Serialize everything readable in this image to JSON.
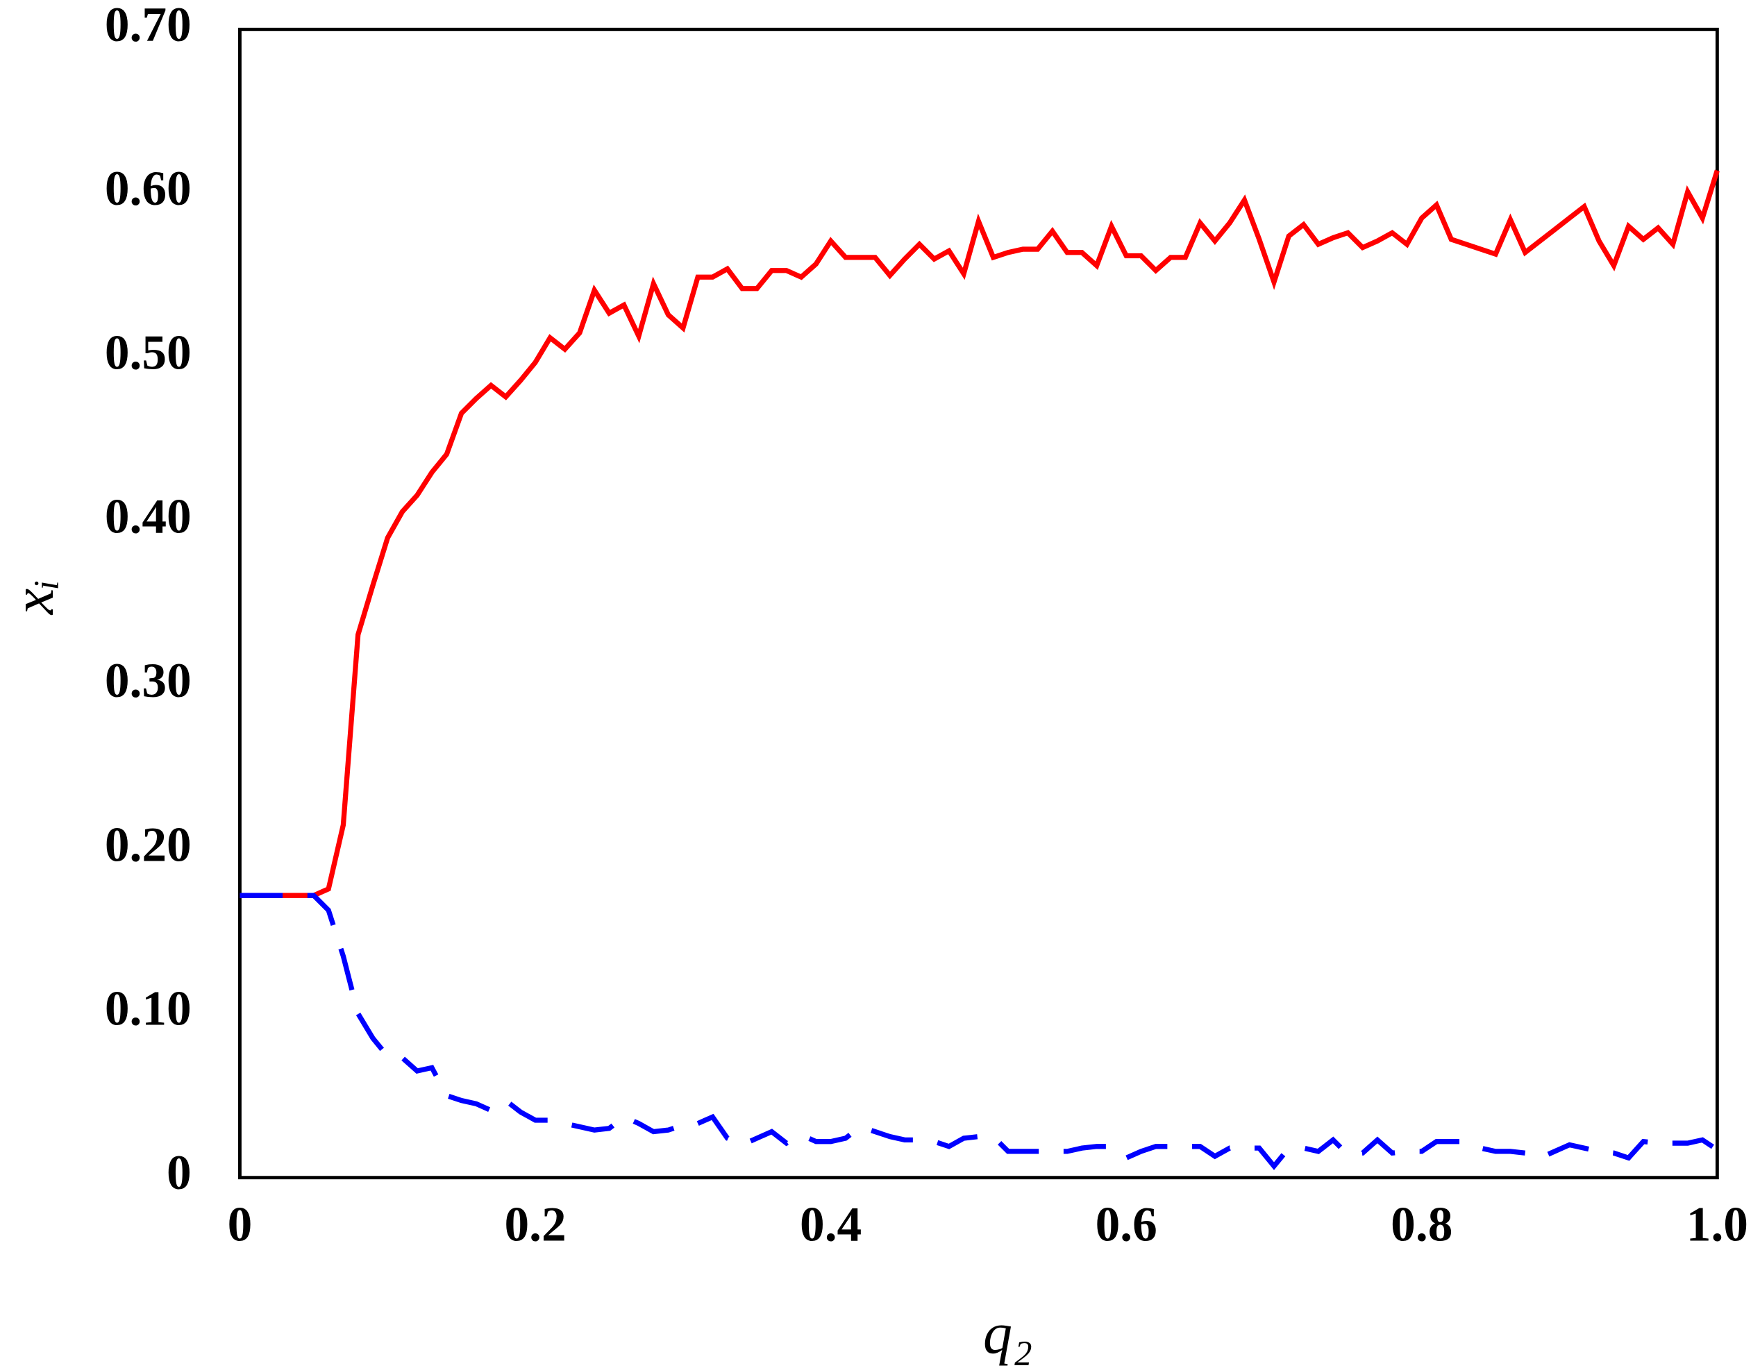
{
  "chart_data": {
    "type": "line",
    "xlabel": "q₂",
    "ylabel": "xᵢ",
    "x": [
      0,
      0.01,
      0.02,
      0.03,
      0.04,
      0.05,
      0.06,
      0.07,
      0.08,
      0.09,
      0.1,
      0.11,
      0.12,
      0.13,
      0.14,
      0.15,
      0.16,
      0.17,
      0.18,
      0.19,
      0.2,
      0.21,
      0.22,
      0.23,
      0.24,
      0.25,
      0.26,
      0.27,
      0.28,
      0.29,
      0.3,
      0.31,
      0.32,
      0.33,
      0.34,
      0.35,
      0.36,
      0.37,
      0.38,
      0.39,
      0.4,
      0.41,
      0.42,
      0.43,
      0.44,
      0.45,
      0.46,
      0.47,
      0.48,
      0.49,
      0.5,
      0.51,
      0.52,
      0.53,
      0.54,
      0.55,
      0.56,
      0.57,
      0.58,
      0.59,
      0.6,
      0.61,
      0.62,
      0.63,
      0.64,
      0.65,
      0.66,
      0.67,
      0.68,
      0.69,
      0.7,
      0.71,
      0.72,
      0.73,
      0.74,
      0.75,
      0.76,
      0.77,
      0.78,
      0.79,
      0.8,
      0.81,
      0.82,
      0.83,
      0.84,
      0.85,
      0.86,
      0.87,
      0.88,
      0.89,
      0.9,
      0.91,
      0.92,
      0.93,
      0.94,
      0.95,
      0.96,
      0.97,
      0.98,
      0.99,
      1
    ],
    "series": [
      {
        "color": "#ff0000",
        "line_style": "solid",
        "values": [
          0.172,
          0.172,
          0.172,
          0.172,
          0.172,
          0.172,
          0.176,
          0.215,
          0.331,
          0.361,
          0.39,
          0.406,
          0.416,
          0.43,
          0.441,
          0.466,
          0.475,
          0.483,
          0.476,
          0.486,
          0.497,
          0.512,
          0.505,
          0.515,
          0.541,
          0.527,
          0.532,
          0.513,
          0.545,
          0.526,
          0.518,
          0.549,
          0.549,
          0.554,
          0.542,
          0.542,
          0.553,
          0.553,
          0.549,
          0.557,
          0.571,
          0.561,
          0.561,
          0.561,
          0.55,
          0.56,
          0.569,
          0.56,
          0.565,
          0.551,
          0.583,
          0.561,
          0.564,
          0.566,
          0.566,
          0.577,
          0.564,
          0.564,
          0.556,
          0.58,
          0.562,
          0.562,
          0.553,
          0.561,
          0.561,
          0.582,
          0.571,
          0.582,
          0.596,
          0.572,
          0.546,
          0.574,
          0.581,
          0.569,
          0.573,
          0.576,
          0.567,
          0.571,
          0.576,
          0.569,
          0.585,
          0.593,
          0.572,
          0.569,
          0.566,
          0.563,
          0.584,
          0.564,
          0.571,
          0.578,
          0.585,
          0.592,
          0.571,
          0.556,
          0.58,
          0.572,
          0.579,
          0.569,
          0.601,
          0.585,
          0.614
        ]
      },
      {
        "color": "#0000ff",
        "line_style": "dashed",
        "values": [
          0.172,
          0.172,
          0.172,
          0.172,
          0.172,
          0.172,
          0.163,
          0.135,
          0.1,
          0.085,
          0.074,
          0.073,
          0.065,
          0.067,
          0.05,
          0.047,
          0.045,
          0.041,
          0.047,
          0.04,
          0.035,
          0.035,
          0.033,
          0.031,
          0.029,
          0.03,
          0.037,
          0.033,
          0.028,
          0.029,
          0.032,
          0.033,
          0.037,
          0.024,
          0.02,
          0.024,
          0.028,
          0.021,
          0.026,
          0.022,
          0.022,
          0.024,
          0.031,
          0.028,
          0.025,
          0.023,
          0.023,
          0.022,
          0.019,
          0.024,
          0.025,
          0.025,
          0.016,
          0.016,
          0.016,
          0.016,
          0.016,
          0.018,
          0.019,
          0.019,
          0.012,
          0.016,
          0.019,
          0.019,
          0.019,
          0.019,
          0.013,
          0.018,
          0.018,
          0.018,
          0.007,
          0.018,
          0.018,
          0.016,
          0.023,
          0.014,
          0.015,
          0.023,
          0.015,
          0.016,
          0.016,
          0.022,
          0.022,
          0.022,
          0.018,
          0.016,
          0.016,
          0.015,
          0.012,
          0.016,
          0.02,
          0.018,
          0.016,
          0.015,
          0.012,
          0.022,
          0.021,
          0.021,
          0.021,
          0.023,
          0.017
        ]
      }
    ],
    "xlim": [
      0,
      1
    ],
    "xticks": [
      0,
      0.2,
      0.4,
      0.6,
      0.8,
      {
        "value": 1,
        "label": "1.0"
      }
    ],
    "ylim": [
      0,
      0.7
    ],
    "yticks": [
      0,
      {
        "value": 0.1,
        "label": "0.10"
      },
      {
        "value": 0.2,
        "label": "0.20"
      },
      {
        "value": 0.3,
        "label": "0.30"
      },
      {
        "value": 0.4,
        "label": "0.40"
      },
      {
        "value": 0.5,
        "label": "0.50"
      },
      {
        "value": 0.6,
        "label": "0.60"
      },
      {
        "value": 0.7,
        "label": "0.70"
      }
    ],
    "grid": false
  }
}
